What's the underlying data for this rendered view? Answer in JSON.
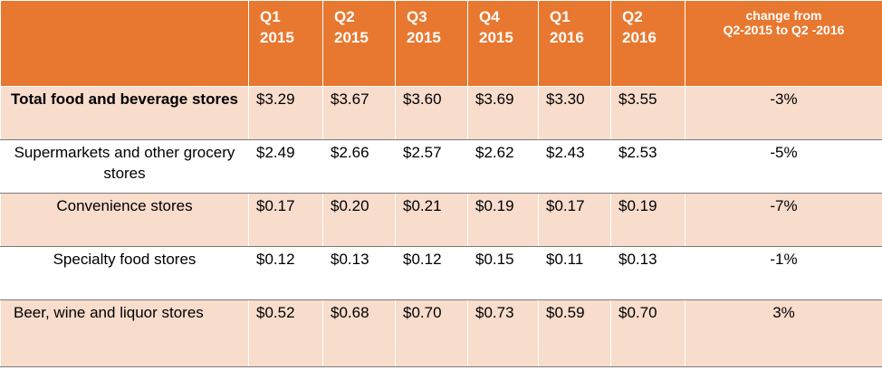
{
  "header": {
    "columns": [
      {
        "line1": "Q1",
        "line2": "2015"
      },
      {
        "line1": "Q2",
        "line2": "2015"
      },
      {
        "line1": "Q3",
        "line2": "2015"
      },
      {
        "line1": "Q4",
        "line2": "2015"
      },
      {
        "line1": "Q1",
        "line2": "2016"
      },
      {
        "line1": "Q2",
        "line2": "2016"
      }
    ],
    "change_line1": "change from",
    "change_line2": "Q2-2015 to Q2 -2016"
  },
  "rows": [
    {
      "category": "Total food and beverage stores",
      "values": [
        "$3.29",
        "$3.67",
        "$3.60",
        "$3.69",
        "$3.30",
        "$3.55"
      ],
      "change": "-3%"
    },
    {
      "category": "Supermarkets and other grocery stores",
      "values": [
        "$2.49",
        "$2.66",
        "$2.57",
        "$2.62",
        "$2.43",
        "$2.53"
      ],
      "change": "-5%"
    },
    {
      "category": "Convenience stores",
      "values": [
        "$0.17",
        "$0.20",
        "$0.21",
        "$0.19",
        "$0.17",
        "$0.19"
      ],
      "change": "-7%"
    },
    {
      "category": "Specialty food stores",
      "values": [
        "$0.12",
        "$0.13",
        "$0.12",
        "$0.15",
        "$0.11",
        "$0.13"
      ],
      "change": "-1%"
    },
    {
      "category": "Beer, wine and liquor stores",
      "values": [
        "$0.52",
        "$0.68",
        "$0.70",
        "$0.73",
        "$0.59",
        "$0.70"
      ],
      "change": "3%"
    }
  ],
  "colors": {
    "header_bg": "#e8782f",
    "row_shaded": "#f8dccc",
    "row_plain": "#ffffff"
  }
}
